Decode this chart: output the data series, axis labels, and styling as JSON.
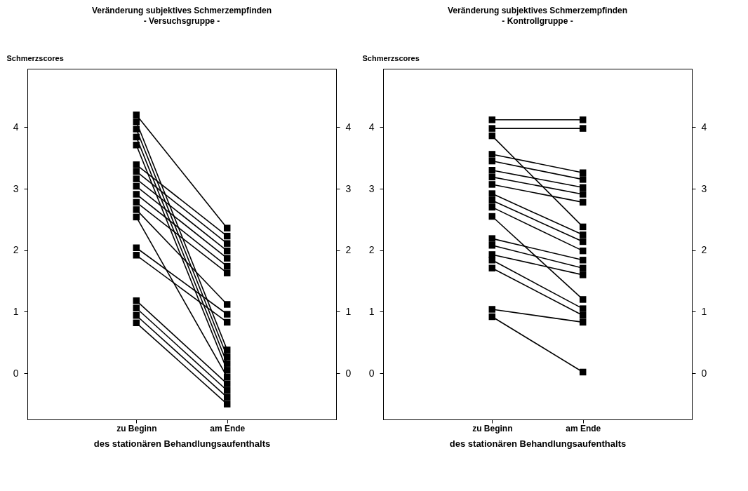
{
  "chart_data": [
    {
      "type": "line",
      "title": "Veränderung subjektives Schmerzempfinden",
      "subtitle": "- Versuchsgruppe -",
      "ylabel": "Schmerzscores",
      "xlabel": "des stationären Behandlungsaufenthalts",
      "categories": [
        "zu Beginn",
        "am Ende"
      ],
      "ylim": [
        -0.75,
        4.95
      ],
      "yticks": [
        0,
        1,
        2,
        3,
        4
      ],
      "y2lim": [
        -0.75,
        4.95
      ],
      "y2ticks": [
        0,
        1,
        2,
        3,
        4
      ],
      "grid": false,
      "marker": "square",
      "line_style": "solid",
      "series": [
        {
          "color": "#000000",
          "values": [
            4.2,
            2.36
          ]
        },
        {
          "color": "#000000",
          "values": [
            4.09,
            0.38
          ]
        },
        {
          "color": "#000000",
          "values": [
            3.97,
            0.27
          ]
        },
        {
          "color": "#000000",
          "values": [
            3.84,
            0.16
          ]
        },
        {
          "color": "#000000",
          "values": [
            3.71,
            0.05
          ]
        },
        {
          "color": "#000000",
          "values": [
            3.39,
            2.23
          ]
        },
        {
          "color": "#000000",
          "values": [
            3.28,
            2.11
          ]
        },
        {
          "color": "#000000",
          "values": [
            3.16,
            1.99
          ]
        },
        {
          "color": "#000000",
          "values": [
            3.04,
            1.87
          ]
        },
        {
          "color": "#000000",
          "values": [
            2.91,
            1.74
          ]
        },
        {
          "color": "#000000",
          "values": [
            2.78,
            1.63
          ]
        },
        {
          "color": "#000000",
          "values": [
            2.66,
            1.12
          ]
        },
        {
          "color": "#000000",
          "values": [
            2.54,
            -0.06
          ]
        },
        {
          "color": "#000000",
          "values": [
            2.04,
            0.96
          ]
        },
        {
          "color": "#000000",
          "values": [
            1.92,
            0.83
          ]
        },
        {
          "color": "#000000",
          "values": [
            1.18,
            -0.17
          ]
        },
        {
          "color": "#000000",
          "values": [
            1.06,
            -0.28
          ]
        },
        {
          "color": "#000000",
          "values": [
            0.94,
            -0.39
          ]
        },
        {
          "color": "#000000",
          "values": [
            0.82,
            -0.5
          ]
        }
      ]
    },
    {
      "type": "line",
      "title": "Veränderung subjektives Schmerzempfinden",
      "subtitle": "- Kontrollgruppe -",
      "ylabel": "Schmerzscores",
      "xlabel": "des stationären Behandlungsaufenthalts",
      "categories": [
        "zu Beginn",
        "am Ende"
      ],
      "ylim": [
        -0.75,
        4.95
      ],
      "yticks": [
        0,
        1,
        2,
        3,
        4
      ],
      "y2lim": [
        -0.75,
        4.95
      ],
      "y2ticks": [
        0,
        1,
        2,
        3,
        4
      ],
      "grid": false,
      "marker": "square",
      "line_style": "solid",
      "series": [
        {
          "color": "#000000",
          "values": [
            4.12,
            4.12
          ]
        },
        {
          "color": "#000000",
          "values": [
            3.98,
            3.98
          ]
        },
        {
          "color": "#000000",
          "values": [
            3.86,
            2.38
          ]
        },
        {
          "color": "#000000",
          "values": [
            3.56,
            3.26
          ]
        },
        {
          "color": "#000000",
          "values": [
            3.45,
            3.15
          ]
        },
        {
          "color": "#000000",
          "values": [
            3.3,
            3.02
          ]
        },
        {
          "color": "#000000",
          "values": [
            3.19,
            2.91
          ]
        },
        {
          "color": "#000000",
          "values": [
            3.07,
            2.78
          ]
        },
        {
          "color": "#000000",
          "values": [
            2.92,
            2.25
          ]
        },
        {
          "color": "#000000",
          "values": [
            2.81,
            2.14
          ]
        },
        {
          "color": "#000000",
          "values": [
            2.7,
            1.99
          ]
        },
        {
          "color": "#000000",
          "values": [
            2.55,
            1.2
          ]
        },
        {
          "color": "#000000",
          "values": [
            2.19,
            1.84
          ]
        },
        {
          "color": "#000000",
          "values": [
            2.08,
            1.71
          ]
        },
        {
          "color": "#000000",
          "values": [
            1.93,
            1.6
          ]
        },
        {
          "color": "#000000",
          "values": [
            1.84,
            1.05
          ]
        },
        {
          "color": "#000000",
          "values": [
            1.71,
            0.94
          ]
        },
        {
          "color": "#000000",
          "values": [
            1.04,
            0.83
          ]
        },
        {
          "color": "#000000",
          "values": [
            0.92,
            0.02
          ]
        }
      ]
    }
  ]
}
